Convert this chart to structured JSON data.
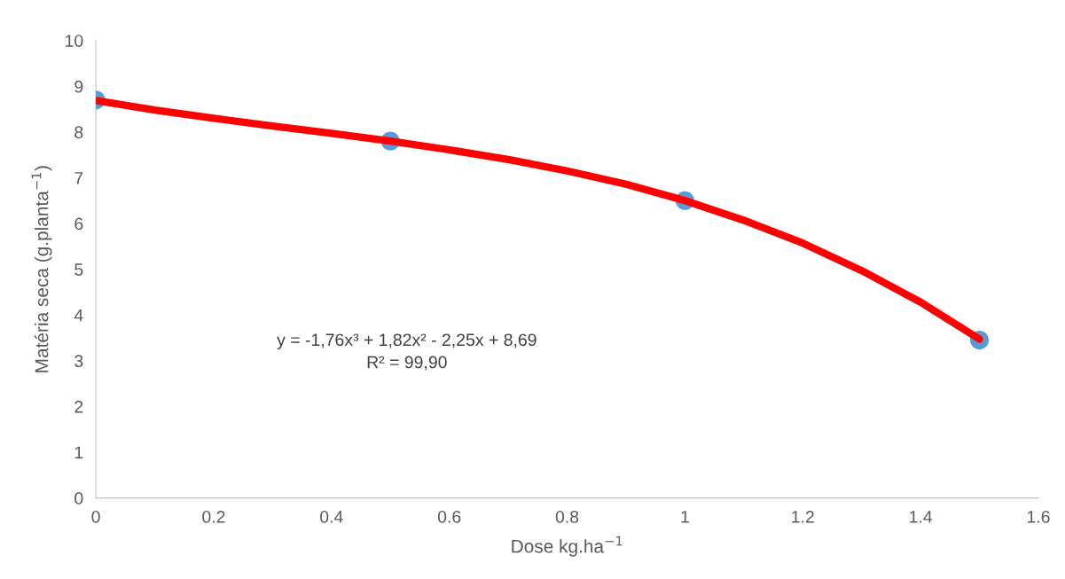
{
  "chart_data": {
    "type": "scatter",
    "xlabel": "Dose kg.ha$^{−1}$",
    "ylabel": "Matéria seca (g.planta$^{−1}$)",
    "x": [
      0,
      0.5,
      1,
      1.5
    ],
    "series": [
      {
        "color": "#5b9bd5",
        "values": [
          8.7,
          7.8,
          6.5,
          3.45
        ],
        "marker": "circle"
      },
      {
        "type": "line",
        "color": "#ff0000",
        "x": [
          0,
          0.1,
          0.2,
          0.3,
          0.4,
          0.5,
          0.6,
          0.7,
          0.8,
          0.9,
          1.0,
          1.1,
          1.2,
          1.3,
          1.4,
          1.5
        ],
        "values": [
          8.69,
          8.48,
          8.3,
          8.13,
          7.97,
          7.8,
          7.61,
          7.4,
          7.15,
          6.86,
          6.5,
          6.07,
          5.57,
          4.97,
          4.28,
          3.47
        ],
        "line_style": "solid"
      }
    ],
    "xlim": [
      0,
      1.6
    ],
    "xticks": [
      0,
      0.2,
      0.4,
      0.6,
      0.8,
      1,
      1.2,
      1.4,
      1.6
    ],
    "ylim": [
      0,
      10
    ],
    "yticks": [
      0,
      1,
      2,
      3,
      4,
      5,
      6,
      7,
      8,
      9,
      10
    ],
    "grid": false,
    "legend": false,
    "annotations": [
      "y = -1,76x³ + 1,82x² - 2,25x + 8,69\nR² = 99,90"
    ]
  }
}
